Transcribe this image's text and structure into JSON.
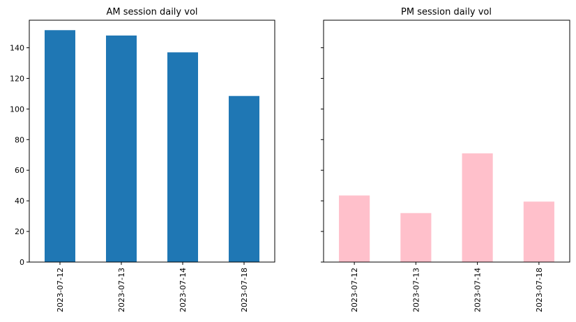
{
  "chart_data": [
    {
      "type": "bar",
      "title": "AM session daily vol",
      "categories": [
        "2023-07-12",
        "2023-07-13",
        "2023-07-14",
        "2023-07-18"
      ],
      "values": [
        151.5,
        148,
        137,
        108.5
      ],
      "color": "#1f77b4",
      "ylim": [
        0,
        158
      ],
      "yticks": [
        "0",
        "20",
        "40",
        "60",
        "80",
        "100",
        "120",
        "140"
      ],
      "ytick_values": [
        0,
        20,
        40,
        60,
        80,
        100,
        120,
        140
      ],
      "grid": false
    },
    {
      "type": "bar",
      "title": "PM session daily vol",
      "categories": [
        "2023-07-12",
        "2023-07-13",
        "2023-07-14",
        "2023-07-18"
      ],
      "values": [
        43.5,
        32,
        71,
        39.5
      ],
      "color": "#ffc0cb",
      "ylim": [
        0,
        158
      ],
      "shared_y": true,
      "ytick_labels_visible": false,
      "grid": false
    }
  ]
}
